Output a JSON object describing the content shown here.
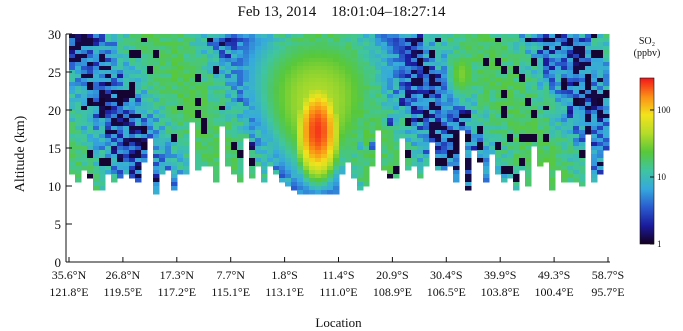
{
  "chart_data": {
    "type": "heatmap",
    "title": "Feb 13, 2014    18:01:04–18:27:14",
    "xlabel": "Location",
    "ylabel": "Altitude (km)",
    "ylim": [
      0,
      30
    ],
    "yticks": [
      0,
      5,
      10,
      15,
      20,
      25,
      30
    ],
    "xtick_labels": [
      [
        "35.6°N",
        "121.8°E"
      ],
      [
        "26.8°N",
        "119.5°E"
      ],
      [
        "17.3°N",
        "117.2°E"
      ],
      [
        "7.7°N",
        "115.1°E"
      ],
      [
        "1.8°S",
        "113.1°E"
      ],
      [
        "11.4°S",
        "111.0°E"
      ],
      [
        "20.9°S",
        "108.9°E"
      ],
      [
        "30.4°S",
        "106.5°E"
      ],
      [
        "39.9°S",
        "103.8°E"
      ],
      [
        "49.3°S",
        "100.4°E"
      ],
      [
        "58.7°S",
        "95.7°E"
      ]
    ],
    "colorbar": {
      "label_line1": "SO₂",
      "label_line2": "(ppbv)",
      "scale": "log",
      "range": [
        1,
        300
      ],
      "ticks": [
        1,
        10,
        100
      ],
      "tick_labels": [
        "1",
        "10",
        "100"
      ],
      "colors": [
        "#14001e",
        "#1b1b9c",
        "#2a5ccf",
        "#36a9dd",
        "#3fc5a0",
        "#58c83a",
        "#b5dc2a",
        "#f2e31c",
        "#fb8e16",
        "#f2161a"
      ]
    },
    "field_description": {
      "plume_center_track": 4.6,
      "plume_peak_ppbv": 250,
      "plume_peak_altitude_km": 17.5,
      "lower_boundary_km_typical": 11
    }
  }
}
